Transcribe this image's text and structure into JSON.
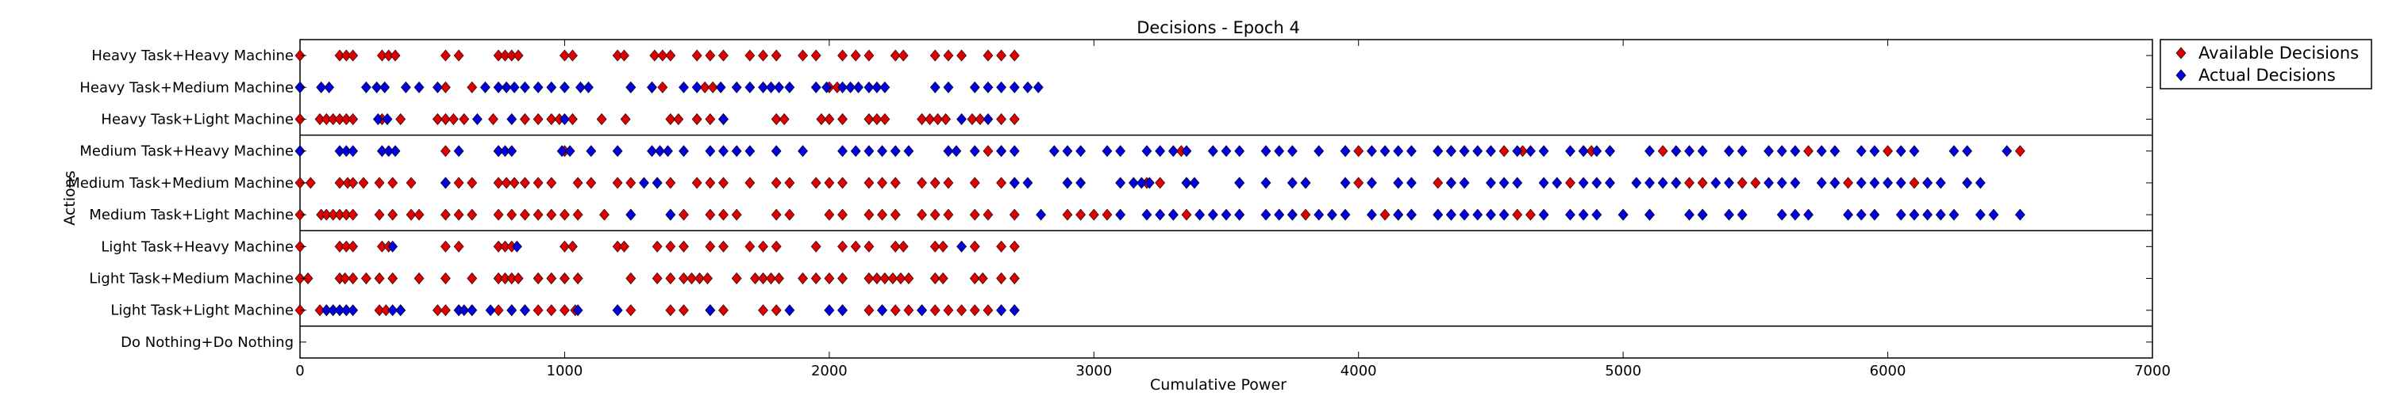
{
  "chart_data": {
    "type": "scatter",
    "title": "Decisions - Epoch 4",
    "xlabel": "Cumulative Power",
    "ylabel": "Actions",
    "xlim": [
      0,
      7000
    ],
    "x_ticks": [
      "0",
      "1000",
      "2000",
      "3000",
      "4000",
      "5000",
      "6000",
      "7000"
    ],
    "categories": [
      "Heavy Task+Heavy Machine",
      "Heavy Task+Medium Machine",
      "Heavy Task+Light Machine",
      "Medium Task+Heavy Machine",
      "Medium Task+Medium Machine",
      "Medium Task+Light Machine",
      "Light Task+Heavy Machine",
      "Light Task+Medium Machine",
      "Light Task+Light Machine",
      "Do Nothing+Do Nothing"
    ],
    "group_separators_after": [
      2,
      5,
      8
    ],
    "legend_position": "outside-upper-right",
    "grid": false,
    "colors": {
      "available": "#dd0000",
      "actual": "#0000dd"
    },
    "series": [
      {
        "name": "Available Decisions",
        "points": [
          {
            "category": "Heavy Task+Heavy Machine",
            "x": [
              0,
              150,
              175,
              200,
              310,
              335,
              360,
              550,
              600,
              750,
              775,
              800,
              825,
              1000,
              1030,
              1200,
              1225,
              1340,
              1370,
              1400,
              1500,
              1550,
              1600,
              1700,
              1750,
              1800,
              1900,
              1950,
              2050,
              2100,
              2150,
              2250,
              2280,
              2400,
              2450,
              2500,
              2600,
              2650,
              2700
            ]
          },
          {
            "category": "Heavy Task+Medium Machine",
            "x": [
              0,
              550,
              650,
              1250,
              1330,
              1370,
              1530,
              1560,
              2000,
              2030
            ]
          },
          {
            "category": "Heavy Task+Light Machine",
            "x": [
              0,
              75,
              100,
              125,
              150,
              175,
              200,
              310,
              380,
              520,
              550,
              580,
              620,
              730,
              850,
              900,
              950,
              980,
              1030,
              1140,
              1230,
              1400,
              1430,
              1500,
              1550,
              1600,
              1800,
              1830,
              1970,
              2000,
              2050,
              2150,
              2180,
              2210,
              2350,
              2380,
              2410,
              2440,
              2540,
              2570,
              2650,
              2700
            ]
          },
          {
            "category": "Medium Task+Heavy Machine",
            "x": [
              0,
              550,
              750,
              1000,
              2600,
              2650,
              3330,
              3950,
              4000,
              4300,
              4350,
              4400,
              4550,
              4620,
              4850,
              4880,
              4950,
              5150,
              5700,
              6000,
              6500
            ]
          },
          {
            "category": "Medium Task+Medium Machine",
            "x": [
              0,
              40,
              150,
              180,
              200,
              240,
              300,
              350,
              420,
              550,
              600,
              650,
              750,
              780,
              810,
              850,
              900,
              950,
              1050,
              1100,
              1200,
              1250,
              1350,
              1400,
              1500,
              1550,
              1600,
              1700,
              1800,
              1850,
              1950,
              2000,
              2050,
              2150,
              2200,
              2250,
              2350,
              2400,
              2450,
              2550,
              2650,
              2700,
              3200,
              3250,
              3350,
              3550,
              3800,
              4000,
              4300,
              4350,
              4800,
              5200,
              5250,
              5300,
              5450,
              5500,
              5800,
              5850,
              6100,
              6150
            ]
          },
          {
            "category": "Medium Task+Light Machine",
            "x": [
              0,
              80,
              100,
              125,
              150,
              175,
              200,
              300,
              350,
              420,
              450,
              550,
              600,
              650,
              750,
              800,
              850,
              900,
              950,
              1000,
              1050,
              1150,
              1250,
              1400,
              1450,
              1550,
              1600,
              1650,
              1800,
              1850,
              2000,
              2050,
              2150,
              2200,
              2250,
              2350,
              2400,
              2450,
              2550,
              2600,
              2700,
              2900,
              2950,
              3000,
              3050,
              3300,
              3350,
              3550,
              3700,
              3750,
              3800,
              4100,
              4150,
              4200,
              4300,
              4350,
              4600,
              4650,
              5000,
              5100,
              5300
            ]
          },
          {
            "category": "Light Task+Heavy Machine",
            "x": [
              0,
              150,
              175,
              200,
              310,
              335,
              550,
              600,
              750,
              775,
              800,
              1000,
              1030,
              1200,
              1225,
              1350,
              1400,
              1450,
              1550,
              1600,
              1700,
              1750,
              1800,
              1950,
              2050,
              2100,
              2150,
              2250,
              2280,
              2400,
              2430,
              2550,
              2650,
              2700
            ]
          },
          {
            "category": "Light Task+Medium Machine",
            "x": [
              0,
              30,
              150,
              170,
              200,
              250,
              300,
              350,
              450,
              550,
              650,
              750,
              775,
              800,
              825,
              900,
              950,
              1000,
              1050,
              1250,
              1350,
              1400,
              1450,
              1480,
              1510,
              1540,
              1650,
              1720,
              1750,
              1780,
              1810,
              1900,
              1950,
              2000,
              2050,
              2150,
              2180,
              2210,
              2240,
              2270,
              2300,
              2400,
              2430,
              2550,
              2580,
              2650,
              2700
            ]
          },
          {
            "category": "Light Task+Light Machine",
            "x": [
              0,
              75,
              100,
              125,
              150,
              175,
              300,
              325,
              380,
              520,
              550,
              600,
              650,
              750,
              800,
              850,
              900,
              950,
              1000,
              1040,
              1200,
              1250,
              1400,
              1450,
              1550,
              1600,
              1750,
              1800,
              2000,
              2050,
              2150,
              2200,
              2250,
              2300,
              2350,
              2400,
              2450,
              2500,
              2550,
              2600,
              2650,
              2700
            ]
          }
        ]
      },
      {
        "name": "Actual Decisions",
        "points": [
          {
            "category": "Heavy Task+Medium Machine",
            "x": [
              0,
              80,
              110,
              250,
              290,
              320,
              400,
              450,
              520,
              700,
              750,
              780,
              810,
              850,
              900,
              950,
              1000,
              1060,
              1090,
              1250,
              1330,
              1450,
              1500,
              1590,
              1650,
              1700,
              1750,
              1780,
              1810,
              1850,
              1950,
              1990,
              2050,
              2080,
              2110,
              2150,
              2180,
              2210,
              2400,
              2450,
              2550,
              2600,
              2650,
              2700,
              2750,
              2790
            ]
          },
          {
            "category": "Heavy Task+Light Machine",
            "x": [
              295,
              330,
              670,
              800,
              1000,
              1600,
              2500,
              2600
            ]
          },
          {
            "category": "Medium Task+Heavy Machine",
            "x": [
              0,
              150,
              175,
              200,
              310,
              335,
              360,
              600,
              750,
              775,
              800,
              990,
              1020,
              1100,
              1200,
              1330,
              1360,
              1390,
              1450,
              1550,
              1600,
              1650,
              1700,
              1800,
              1900,
              2050,
              2100,
              2150,
              2200,
              2250,
              2300,
              2450,
              2480,
              2550,
              2650,
              2700,
              2850,
              2900,
              2950,
              3050,
              3100,
              3200,
              3250,
              3300,
              3350,
              3450,
              3500,
              3550,
              3650,
              3700,
              3750,
              3850,
              3950,
              4050,
              4100,
              4150,
              4200,
              4300,
              4350,
              4400,
              4450,
              4500,
              4600,
              4650,
              4700,
              4800,
              4850,
              4900,
              4950,
              5100,
              5200,
              5250,
              5300,
              5400,
              5450,
              5550,
              5600,
              5650,
              5750,
              5800,
              5900,
              5950,
              6050,
              6100,
              6250,
              6300,
              6450
            ]
          },
          {
            "category": "Medium Task+Medium Machine",
            "x": [
              550,
              1300,
              1350,
              2700,
              2750,
              2900,
              2950,
              3100,
              3150,
              3180,
              3210,
              3350,
              3380,
              3550,
              3650,
              3750,
              3800,
              3950,
              4050,
              4150,
              4200,
              4350,
              4400,
              4500,
              4550,
              4600,
              4700,
              4750,
              4850,
              4900,
              4950,
              5050,
              5100,
              5150,
              5200,
              5350,
              5400,
              5550,
              5600,
              5650,
              5750,
              5800,
              5900,
              5950,
              6000,
              6050,
              6150,
              6200,
              6300,
              6350
            ]
          },
          {
            "category": "Medium Task+Light Machine",
            "x": [
              1250,
              1400,
              2800,
              3100,
              3200,
              3250,
              3300,
              3400,
              3450,
              3500,
              3550,
              3650,
              3700,
              3750,
              3850,
              3900,
              3950,
              4050,
              4150,
              4200,
              4300,
              4350,
              4400,
              4450,
              4500,
              4550,
              4700,
              4800,
              4850,
              4900,
              5000,
              5100,
              5250,
              5300,
              5400,
              5450,
              5600,
              5650,
              5700,
              5850,
              5900,
              5950,
              6050,
              6100,
              6150,
              6200,
              6250,
              6350,
              6400,
              6500
            ]
          },
          {
            "category": "Light Task+Heavy Machine",
            "x": [
              350,
              820,
              2500
            ]
          },
          {
            "category": "Light Task+Light Machine",
            "x": [
              100,
              125,
              150,
              175,
              200,
              350,
              380,
              600,
              620,
              650,
              720,
              800,
              850,
              1050,
              1200,
              1550,
              1850,
              2000,
              2050,
              2200,
              2350,
              2650,
              2700
            ]
          }
        ]
      }
    ]
  }
}
